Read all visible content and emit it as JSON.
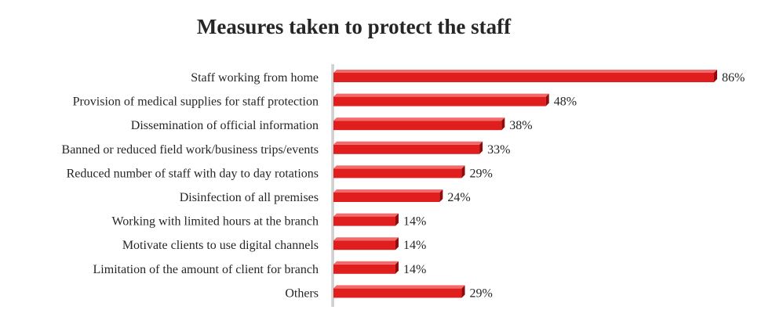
{
  "chart_data": {
    "type": "bar",
    "orientation": "horizontal",
    "title": "Measures taken to protect the staff",
    "xlabel": "",
    "ylabel": "",
    "xlim": [
      0,
      88
    ],
    "grid": false,
    "legend": "none",
    "value_suffix": "%",
    "categories": [
      "Staff working from home",
      "Provision of medical supplies for staff protection",
      "Dissemination of official information",
      "Banned or reduced field work/business trips/events",
      "Reduced number of staff with day to day rotations",
      "Disinfection of all premises",
      "Working with limited hours at the branch",
      "Motivate clients to use digital channels",
      "Limitation of the amount of client for branch",
      "Others"
    ],
    "values": [
      86,
      48,
      38,
      33,
      29,
      24,
      14,
      14,
      14,
      29
    ],
    "colors": {
      "bar": "#e01e1e",
      "bar_top": "#f26a6a",
      "bar_side": "#8e0c0c",
      "axis": "#b5b5b5",
      "text": "#262626"
    }
  }
}
